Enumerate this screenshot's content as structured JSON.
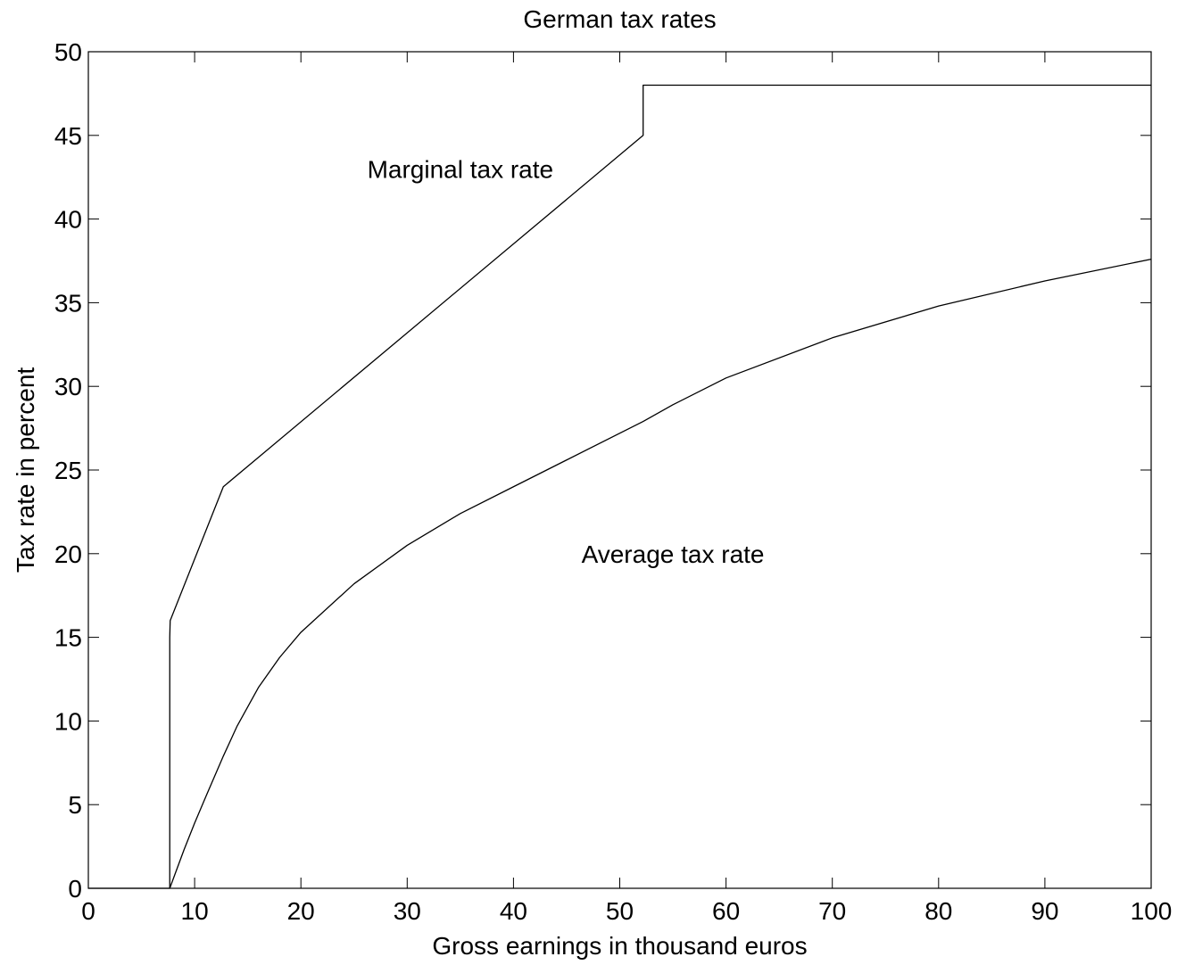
{
  "chart_data": {
    "type": "line",
    "title": "German tax rates",
    "xlabel": "Gross earnings in thousand euros",
    "ylabel": "Tax rate in percent",
    "xlim": [
      0,
      100
    ],
    "ylim": [
      0,
      50
    ],
    "xticks": [
      0,
      10,
      20,
      30,
      40,
      50,
      60,
      70,
      80,
      90,
      100
    ],
    "yticks": [
      0,
      5,
      10,
      15,
      20,
      25,
      30,
      35,
      40,
      45,
      50
    ],
    "grid": false,
    "line_color": "#000000",
    "series": [
      {
        "name": "Marginal tax rate",
        "x": [
          0,
          7.66,
          7.66,
          7.7,
          12.7,
          52.2,
          52.2,
          100
        ],
        "y": [
          0,
          0,
          15,
          16,
          24,
          45,
          48,
          48
        ]
      },
      {
        "name": "Average tax rate",
        "x": [
          7.66,
          9,
          10,
          11,
          12.7,
          14,
          16,
          18,
          20,
          25,
          30,
          35,
          40,
          45,
          52.2,
          55,
          60,
          70,
          80,
          90,
          100
        ],
        "y": [
          0,
          2.3,
          3.9,
          5.4,
          7.9,
          9.7,
          12.0,
          13.8,
          15.3,
          18.2,
          20.5,
          22.4,
          24.0,
          25.6,
          27.9,
          28.9,
          30.5,
          32.9,
          34.8,
          36.3,
          37.6
        ]
      }
    ],
    "annotations": [
      {
        "text": "Marginal tax rate",
        "x": 35,
        "y": 43
      },
      {
        "text": "Average tax rate",
        "x": 55,
        "y": 20
      }
    ]
  }
}
